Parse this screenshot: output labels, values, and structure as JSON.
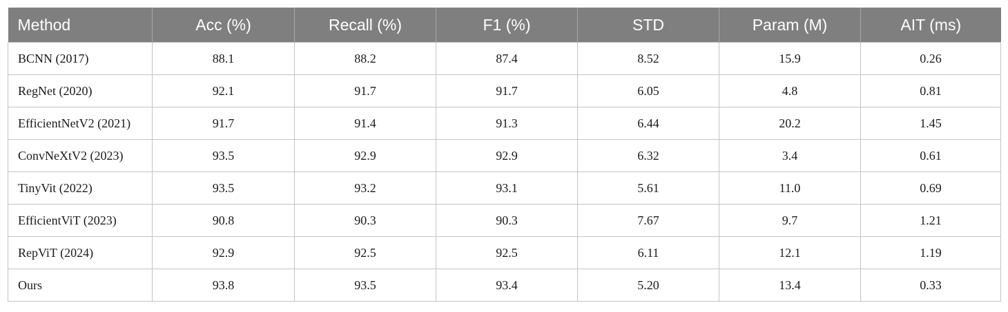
{
  "chart_data": {
    "type": "table",
    "columns": [
      "Method",
      "Acc (%)",
      "Recall (%)",
      "F1 (%)",
      "STD",
      "Param (M)",
      "AIT (ms)"
    ],
    "rows": [
      [
        "BCNN (2017)",
        "88.1",
        "88.2",
        "87.4",
        "8.52",
        "15.9",
        "0.26"
      ],
      [
        "RegNet (2020)",
        "92.1",
        "91.7",
        "91.7",
        "6.05",
        "4.8",
        "0.81"
      ],
      [
        "EfficientNetV2 (2021)",
        "91.7",
        "91.4",
        "91.3",
        "6.44",
        "20.2",
        "1.45"
      ],
      [
        "ConvNeXtV2 (2023)",
        "93.5",
        "92.9",
        "92.9",
        "6.32",
        "3.4",
        "0.61"
      ],
      [
        "TinyVit (2022)",
        "93.5",
        "93.2",
        "93.1",
        "5.61",
        "11.0",
        "0.69"
      ],
      [
        "EfficientViT (2023)",
        "90.8",
        "90.3",
        "90.3",
        "7.67",
        "9.7",
        "1.21"
      ],
      [
        "RepViT (2024)",
        "92.9",
        "92.5",
        "92.5",
        "6.11",
        "12.1",
        "1.19"
      ],
      [
        "Ours",
        "93.8",
        "93.5",
        "93.4",
        "5.20",
        "13.4",
        "0.33"
      ]
    ],
    "header_color": "#7f7f7f",
    "header_text_color": "#ffffff",
    "border_color": "#c4c4c4"
  }
}
